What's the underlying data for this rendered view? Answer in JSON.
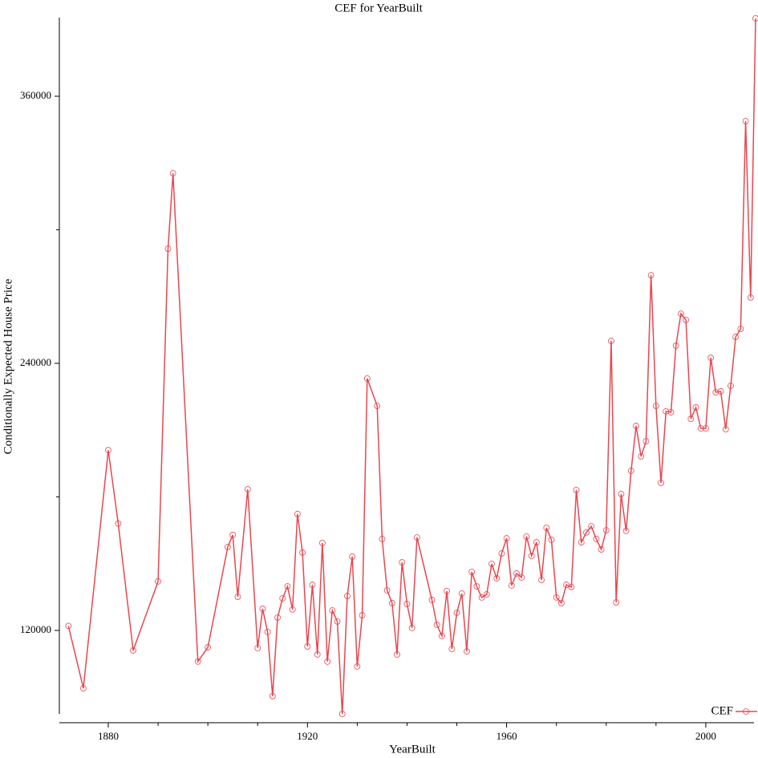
{
  "chart_data": {
    "type": "line",
    "title": "CEF for YearBuilt",
    "xlabel": "YearBuilt",
    "ylabel": "Conditionally Expected House Price",
    "x": [
      1872,
      1875,
      1880,
      1882,
      1885,
      1890,
      1892,
      1893,
      1898,
      1900,
      1904,
      1905,
      1906,
      1908,
      1910,
      1911,
      1912,
      1913,
      1914,
      1915,
      1916,
      1917,
      1918,
      1919,
      1920,
      1921,
      1922,
      1923,
      1924,
      1925,
      1926,
      1927,
      1928,
      1929,
      1930,
      1931,
      1932,
      1934,
      1935,
      1936,
      1937,
      1938,
      1939,
      1940,
      1941,
      1942,
      1945,
      1946,
      1947,
      1948,
      1949,
      1950,
      1951,
      1952,
      1953,
      1954,
      1955,
      1956,
      1957,
      1958,
      1959,
      1960,
      1961,
      1962,
      1963,
      1964,
      1965,
      1966,
      1967,
      1968,
      1969,
      1970,
      1971,
      1972,
      1973,
      1974,
      1975,
      1976,
      1977,
      1978,
      1979,
      1980,
      1981,
      1982,
      1983,
      1984,
      1985,
      1986,
      1987,
      1988,
      1989,
      1990,
      1991,
      1992,
      1993,
      1994,
      1995,
      1996,
      1997,
      1998,
      1999,
      2000,
      2001,
      2002,
      2003,
      2004,
      2005,
      2006,
      2007,
      2008,
      2009,
      2010
    ],
    "series": [
      {
        "name": "CEF",
        "color": "#e8474f",
        "values": [
          122000,
          94000,
          201000,
          168000,
          111000,
          142000,
          291500,
          325400,
          106000,
          112400,
          157500,
          162900,
          135100,
          183400,
          112100,
          129700,
          119300,
          90500,
          125800,
          134400,
          139800,
          129400,
          172300,
          155000,
          112800,
          140500,
          109200,
          159300,
          106000,
          129000,
          124000,
          82500,
          135500,
          153200,
          103800,
          126800,
          233200,
          220900,
          161100,
          138000,
          132300,
          109200,
          150600,
          131900,
          121100,
          161800,
          133700,
          122500,
          117500,
          137700,
          111700,
          127900,
          136600,
          110600,
          146300,
          139800,
          134800,
          136200,
          149900,
          143400,
          154600,
          161400,
          140200,
          145600,
          143800,
          162200,
          153500,
          159600,
          142700,
          166100,
          160700,
          134800,
          132300,
          140500,
          139500,
          183100,
          159600,
          164000,
          166800,
          161100,
          156400,
          165000,
          250100,
          132600,
          181300,
          164700,
          191700,
          211900,
          198200,
          205000,
          279600,
          220900,
          186300,
          218400,
          218000,
          247900,
          262300,
          259500,
          215100,
          220200,
          210800,
          210800,
          242500,
          227000,
          227400,
          210400,
          229900,
          251900,
          255500,
          348800,
          269600,
          395000
        ]
      }
    ],
    "xlim": [
      1870,
      2010
    ],
    "ylim": [
      82000,
      396000
    ],
    "xticks": [
      1880,
      1920,
      1960,
      2000
    ],
    "yticks": [
      120000,
      240000,
      360000
    ],
    "xminorticks": [
      1890,
      1900,
      1910,
      1930,
      1940,
      1950,
      1970,
      1980,
      1990
    ],
    "yminorticks": [
      180000,
      300000
    ],
    "legend": "bottom-right"
  }
}
